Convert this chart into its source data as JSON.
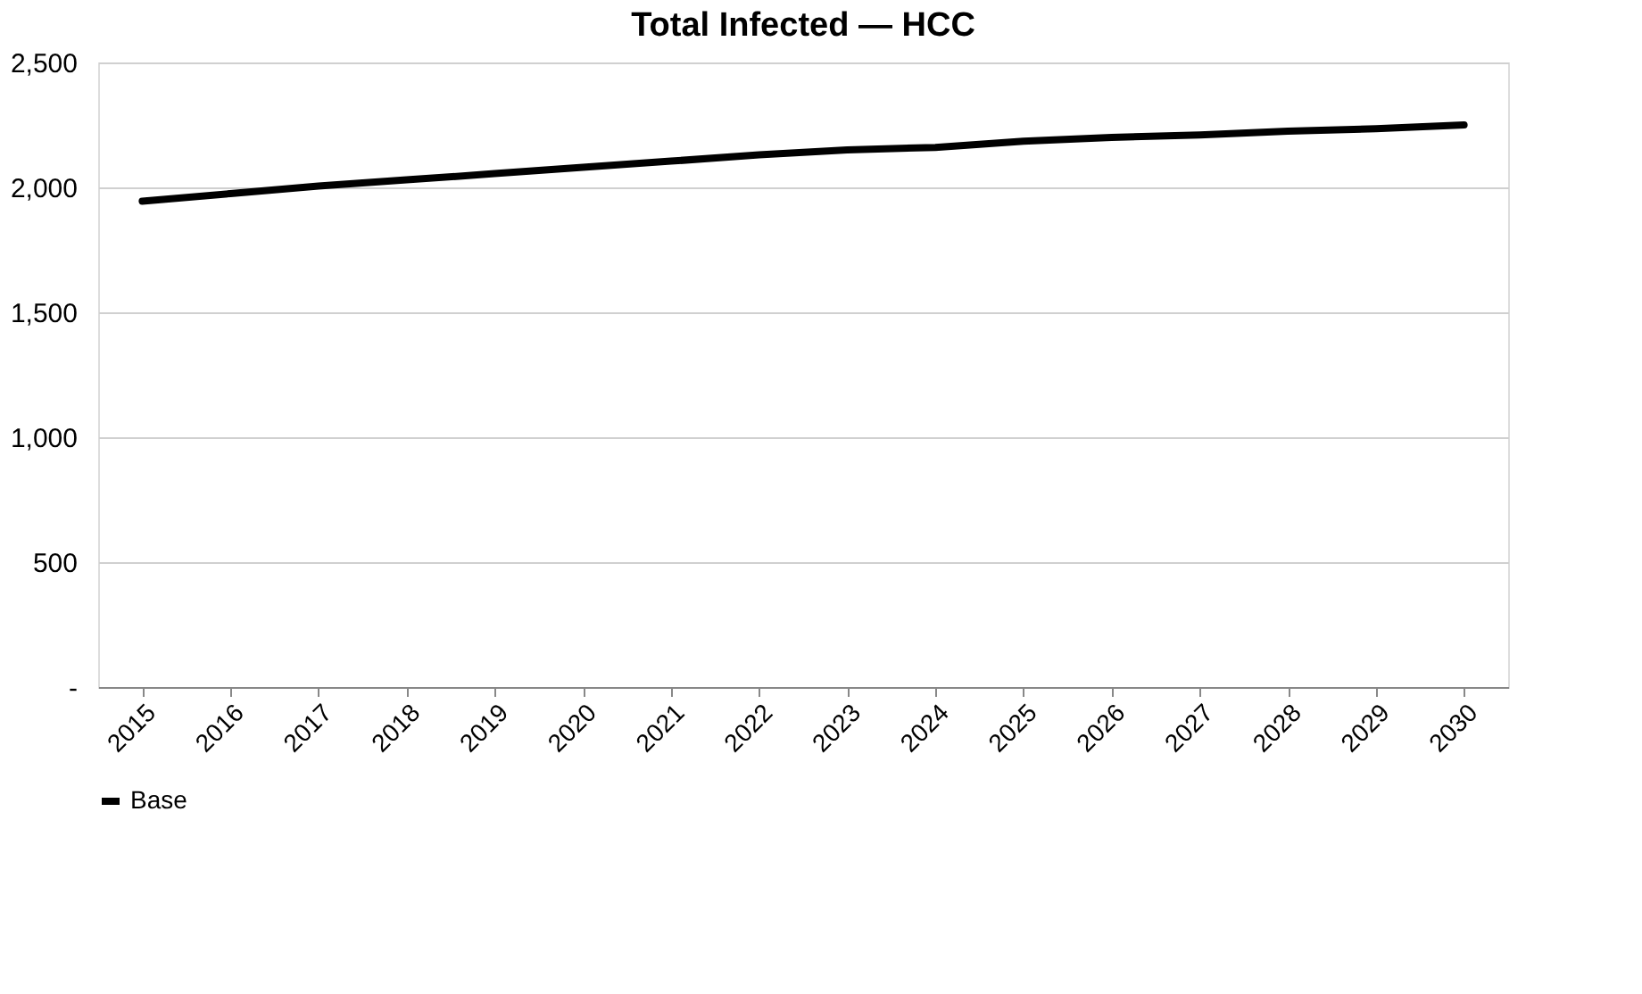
{
  "chart_data": {
    "type": "line",
    "title": "Total Infected — HCC",
    "categories": [
      "2015",
      "2016",
      "2017",
      "2018",
      "2019",
      "2020",
      "2021",
      "2022",
      "2023",
      "2024",
      "2025",
      "2026",
      "2027",
      "2028",
      "2029",
      "2030"
    ],
    "series": [
      {
        "name": "Base",
        "color": "#000000",
        "values": [
          1945,
          1975,
          2005,
          2030,
          2055,
          2080,
          2105,
          2130,
          2150,
          2160,
          2185,
          2200,
          2210,
          2225,
          2235,
          2250
        ]
      }
    ],
    "ylim": [
      0,
      2500
    ],
    "yticks": [
      {
        "value": 0,
        "label": "-"
      },
      {
        "value": 500,
        "label": "500"
      },
      {
        "value": 1000,
        "label": "1,000"
      },
      {
        "value": 1500,
        "label": "1,500"
      },
      {
        "value": 2000,
        "label": "2,000"
      },
      {
        "value": 2500,
        "label": "2,500"
      }
    ],
    "grid": "y",
    "legend": "bottom",
    "marker": "none",
    "line_style": "solid"
  }
}
